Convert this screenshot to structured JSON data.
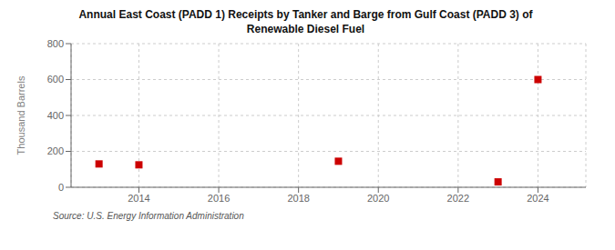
{
  "chart_data": {
    "type": "scatter",
    "title": "Annual East Coast (PADD 1) Receipts by Tanker and Barge from Gulf Coast (PADD 3) of\nRenewable Diesel Fuel",
    "y_label": "Thousand Barrels",
    "annotations": [
      "Source: U.S. Energy Information Administration"
    ],
    "x": [
      2013,
      2014,
      2019,
      2023,
      2024
    ],
    "values": [
      130,
      125,
      145,
      30,
      600
    ],
    "color": "#cc0000",
    "marker": "square",
    "xlim": [
      2012.3,
      2025.2
    ],
    "xticks": [
      2014,
      2016,
      2018,
      2020,
      2022,
      2024
    ],
    "ylim": [
      0,
      800
    ],
    "yticks": [
      0,
      200,
      400,
      600,
      800
    ],
    "grid": true
  }
}
